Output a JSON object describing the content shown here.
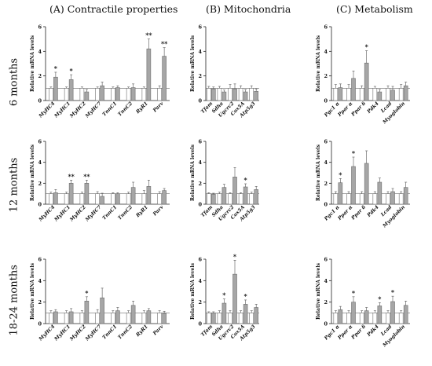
{
  "column_titles": [
    "(A) Contractile properties",
    "(B) Mitochondria",
    "(C) Metabolism"
  ],
  "row_labels": [
    "6 months",
    "12 months",
    "18-24 months"
  ],
  "colors": {
    "control_bar": "#ffffff",
    "treated_bar": "#a6a6a6",
    "bar_edge": "#6e6e6e",
    "reference_line": "#6e6e6e",
    "text": "#111111"
  },
  "chart_data": [
    {
      "type": "bar",
      "panel": "A",
      "row": "6 months",
      "ylabel": "Relative mRNA levels",
      "ylim": [
        0,
        6
      ],
      "yticks": [
        0,
        2,
        4,
        6
      ],
      "reference_line": 1,
      "categories": [
        "MyHC4",
        "MyHC1",
        "MyHC2",
        "MyHC7",
        "TnnC1",
        "TnnC2",
        "RyR1",
        "Parv"
      ],
      "series": [
        {
          "values": [
            1,
            1,
            1,
            1,
            1,
            1,
            1,
            1
          ],
          "errors": [
            0.1,
            0.1,
            0.1,
            0.1,
            0.1,
            0.1,
            0.1,
            0.2
          ]
        },
        {
          "values": [
            1.9,
            1.7,
            0.7,
            1.2,
            1.05,
            1.05,
            4.2,
            3.6
          ],
          "errors": [
            0.4,
            0.4,
            0.2,
            0.3,
            0.15,
            0.3,
            0.8,
            0.7
          ]
        }
      ],
      "significance": [
        "*",
        "*",
        "",
        "",
        "",
        "",
        "**",
        "**"
      ]
    },
    {
      "type": "bar",
      "panel": "B",
      "row": "6 months",
      "ylabel": "Relative mRNA levels",
      "ylim": [
        0,
        6
      ],
      "yticks": [
        0,
        2,
        4,
        6
      ],
      "reference_line": 1,
      "categories": [
        "Tfam",
        "Sdha",
        "Ugcrc2",
        "Cox5A",
        "Atp5g3"
      ],
      "series": [
        {
          "values": [
            1,
            1,
            1,
            1,
            1
          ],
          "errors": [
            0.15,
            0.15,
            0.3,
            0.2,
            0.2
          ]
        },
        {
          "values": [
            0.95,
            0.7,
            0.95,
            0.7,
            0.75
          ],
          "errors": [
            0.15,
            0.15,
            0.4,
            0.2,
            0.2
          ]
        }
      ],
      "significance": [
        "",
        "",
        "",
        "",
        ""
      ]
    },
    {
      "type": "bar",
      "panel": "C",
      "row": "6 months",
      "ylabel": "Relative mRNA levels",
      "ylim": [
        0,
        6
      ],
      "yticks": [
        0,
        2,
        4,
        6
      ],
      "reference_line": 1,
      "categories": [
        "Pgc1 α",
        "Ppar α",
        "Ppar δ",
        "Pdk4",
        "Lcad",
        "Myoglobin"
      ],
      "series": [
        {
          "values": [
            1,
            1,
            1,
            1,
            1,
            1
          ],
          "errors": [
            0.3,
            0.3,
            0.2,
            0.15,
            0.2,
            0.3
          ]
        },
        {
          "values": [
            1.05,
            1.8,
            3.05,
            0.7,
            0.85,
            1.2
          ],
          "errors": [
            0.3,
            0.6,
            1.0,
            0.2,
            0.3,
            0.3
          ]
        }
      ],
      "significance": [
        "",
        "",
        "*",
        "",
        "",
        ""
      ]
    },
    {
      "type": "bar",
      "panel": "A",
      "row": "12 months",
      "ylabel": "Relative mRNA levels",
      "ylim": [
        0,
        6
      ],
      "yticks": [
        0,
        2,
        4,
        6
      ],
      "reference_line": 1,
      "categories": [
        "MyHC4",
        "MyHC1",
        "MyHC2",
        "MyHC7",
        "TnnC1",
        "TnnC2",
        "RyR1",
        "Parv"
      ],
      "series": [
        {
          "values": [
            1,
            1,
            1,
            1,
            1,
            1,
            1,
            1
          ],
          "errors": [
            0.15,
            0.15,
            0.15,
            0.2,
            0.1,
            0.15,
            0.3,
            0.2
          ]
        },
        {
          "values": [
            1.1,
            2.0,
            2.0,
            0.75,
            1.0,
            1.6,
            1.7,
            1.3
          ],
          "errors": [
            0.3,
            0.3,
            0.3,
            0.3,
            0.1,
            0.5,
            0.6,
            0.2
          ]
        }
      ],
      "significance": [
        "",
        "**",
        "**",
        "",
        "",
        "",
        "",
        ""
      ]
    },
    {
      "type": "bar",
      "panel": "B",
      "row": "12 months",
      "ylabel": "Relative mRNA levels",
      "ylim": [
        0,
        6
      ],
      "yticks": [
        0,
        2,
        4,
        6
      ],
      "reference_line": 1,
      "categories": [
        "Tfam",
        "Sdha",
        "Ugcrc2",
        "Cox5A",
        "Atp5g3"
      ],
      "series": [
        {
          "values": [
            1,
            1,
            1,
            1,
            1
          ],
          "errors": [
            0.1,
            0.15,
            0.1,
            0.1,
            0.15
          ]
        },
        {
          "values": [
            0.95,
            1.6,
            2.6,
            1.65,
            1.4
          ],
          "errors": [
            0.1,
            0.3,
            0.9,
            0.3,
            0.3
          ]
        }
      ],
      "significance": [
        "",
        "",
        "",
        "*",
        ""
      ]
    },
    {
      "type": "bar",
      "panel": "C",
      "row": "12 months",
      "ylabel": "Relative mRNA levels",
      "ylim": [
        0,
        6
      ],
      "yticks": [
        0,
        2,
        4,
        6
      ],
      "reference_line": 1,
      "categories": [
        "Pgc1 α",
        "Ppar α",
        "Ppar δ",
        "Pdk4",
        "Lcad",
        "Myoglobin"
      ],
      "series": [
        {
          "values": [
            1,
            1,
            1,
            1,
            1,
            1
          ],
          "errors": [
            0.2,
            0.2,
            0.2,
            0.2,
            0.2,
            0.2
          ]
        },
        {
          "values": [
            2.05,
            3.6,
            3.9,
            2.1,
            1.2,
            1.6
          ],
          "errors": [
            0.4,
            0.9,
            1.2,
            0.4,
            0.3,
            0.5
          ]
        }
      ],
      "significance": [
        "*",
        "*",
        "",
        "",
        "",
        ""
      ]
    },
    {
      "type": "bar",
      "panel": "A",
      "row": "18-24 months",
      "ylabel": "Relative mRNA levels",
      "ylim": [
        0,
        6
      ],
      "yticks": [
        0,
        2,
        4,
        6
      ],
      "reference_line": 1,
      "categories": [
        "MyHC4",
        "MyHC1",
        "MyHC2",
        "MyHC7",
        "TnnC1",
        "TnnC2",
        "RyR1",
        "Parv"
      ],
      "series": [
        {
          "values": [
            1,
            1,
            1,
            1,
            1,
            1,
            1,
            1
          ],
          "errors": [
            0.2,
            0.2,
            0.2,
            0.3,
            0.2,
            0.2,
            0.2,
            0.2
          ]
        },
        {
          "values": [
            1.1,
            1.1,
            2.1,
            2.4,
            1.2,
            1.7,
            1.2,
            0.95
          ],
          "errors": [
            0.2,
            0.3,
            0.4,
            0.9,
            0.3,
            0.4,
            0.2,
            0.2
          ]
        }
      ],
      "significance": [
        "",
        "",
        "*",
        "",
        "",
        "",
        "",
        ""
      ]
    },
    {
      "type": "bar",
      "panel": "B",
      "row": "18-24 months",
      "ylabel": "Relative mRNA levels",
      "ylim": [
        0,
        6
      ],
      "yticks": [
        0,
        2,
        4,
        6
      ],
      "reference_line": 1,
      "categories": [
        "Tfam",
        "Sdha",
        "Ugcrc2",
        "Cox5A",
        "Atp5g3"
      ],
      "series": [
        {
          "values": [
            1,
            1,
            1,
            1,
            1
          ],
          "errors": [
            0.1,
            0.2,
            0.2,
            0.2,
            0.2
          ]
        },
        {
          "values": [
            1.0,
            1.9,
            4.6,
            1.8,
            1.5
          ],
          "errors": [
            0.1,
            0.4,
            1.3,
            0.4,
            0.3
          ]
        }
      ],
      "significance": [
        "",
        "*",
        "*",
        "*",
        ""
      ]
    },
    {
      "type": "bar",
      "panel": "C",
      "row": "18-24 months",
      "ylabel": "Relative mRNA levels",
      "ylim": [
        0,
        6
      ],
      "yticks": [
        0,
        2,
        4,
        6
      ],
      "reference_line": 1,
      "categories": [
        "Pgc1 α",
        "Ppar α",
        "Ppar δ",
        "Pdk4",
        "Lcad",
        "Myoglobin"
      ],
      "series": [
        {
          "values": [
            1,
            1,
            1,
            1,
            1,
            1
          ],
          "errors": [
            0.2,
            0.2,
            0.2,
            0.2,
            0.2,
            0.2
          ]
        },
        {
          "values": [
            1.3,
            2.0,
            1.2,
            1.65,
            2.05,
            1.7
          ],
          "errors": [
            0.3,
            0.5,
            0.3,
            0.3,
            0.5,
            0.4
          ]
        }
      ],
      "significance": [
        "",
        "*",
        "",
        "*",
        "*",
        ""
      ]
    }
  ]
}
